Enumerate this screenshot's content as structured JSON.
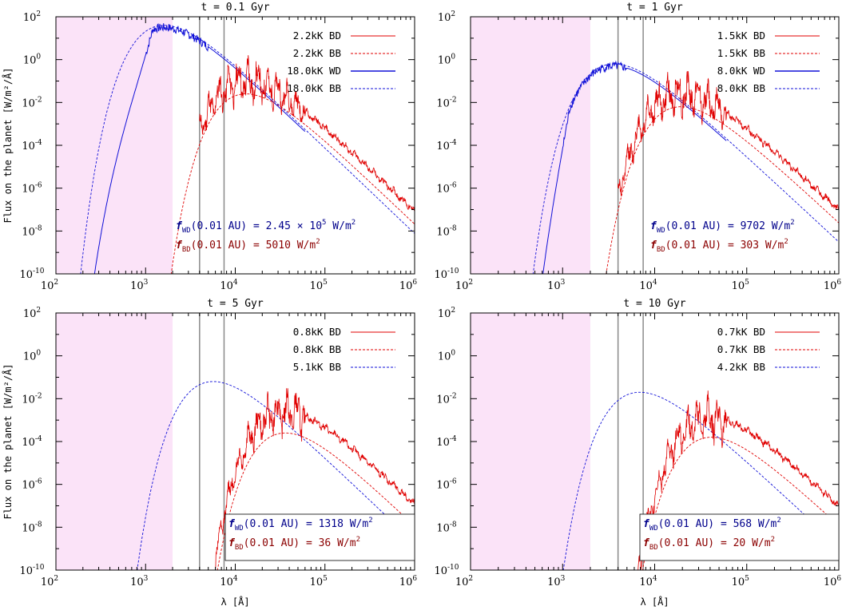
{
  "colors": {
    "bd": "#e00000",
    "wd": "#1010d8",
    "ann_wd": "#00008b",
    "ann_bd": "#8b0000",
    "band": "#fbe3f8",
    "line": "#8a8a8a"
  },
  "axes": {
    "ylabel": "Flux on the planet [W/m²/Å]",
    "xlabel": "λ [Å]",
    "x_ticks": [
      {
        "base": "10",
        "exp": "2"
      },
      {
        "base": "10",
        "exp": "3"
      },
      {
        "base": "10",
        "exp": "4"
      },
      {
        "base": "10",
        "exp": "5"
      },
      {
        "base": "10",
        "exp": "6"
      }
    ],
    "y_ticks": [
      {
        "base": "10",
        "exp": "2"
      },
      {
        "base": "10",
        "exp": "0"
      },
      {
        "base": "10",
        "exp": "-2"
      },
      {
        "base": "10",
        "exp": "-4"
      },
      {
        "base": "10",
        "exp": "-6"
      },
      {
        "base": "10",
        "exp": "-8"
      },
      {
        "base": "10",
        "exp": "-10"
      }
    ]
  },
  "chart_data": [
    {
      "type": "line",
      "title": "t = 0.1 Gyr",
      "xscale": "log",
      "yscale": "log",
      "xlim": [
        100,
        1000000
      ],
      "ylim": [
        1e-10,
        100
      ],
      "shaded_band": [
        100,
        2000
      ],
      "vertical_lines": [
        4000,
        7500
      ],
      "wd_temp_k": 18000,
      "bd_temp_k": 2200,
      "legend": [
        {
          "label": "2.2kK BD",
          "kind": "bd",
          "style": "solid"
        },
        {
          "label": "2.2kK BB",
          "kind": "bd",
          "style": "dashed"
        },
        {
          "label": "18.0kK WD",
          "kind": "wd",
          "style": "solid"
        },
        {
          "label": "18.0kK BB",
          "kind": "wd",
          "style": "dashed"
        }
      ],
      "annotation": {
        "wd": {
          "f": "f",
          "sub": "WD",
          "main": "(0.01 AU) = 2.45 × 10",
          "sup": "5",
          "unit": " W/m",
          "unit_sup": "2"
        },
        "bd": {
          "f": "f",
          "sub": "BD",
          "main": "(0.01 AU) = 5010 W/m",
          "sup": "2"
        },
        "boxed": false
      }
    },
    {
      "type": "line",
      "title": "t = 1 Gyr",
      "xscale": "log",
      "yscale": "log",
      "xlim": [
        100,
        1000000
      ],
      "ylim": [
        1e-10,
        100
      ],
      "shaded_band": [
        100,
        2000
      ],
      "vertical_lines": [
        4000,
        7500
      ],
      "wd_temp_k": 8000,
      "bd_temp_k": 1500,
      "legend": [
        {
          "label": "1.5kK BD",
          "kind": "bd",
          "style": "solid"
        },
        {
          "label": "1.5kK BB",
          "kind": "bd",
          "style": "dashed"
        },
        {
          "label": "8.0kK WD",
          "kind": "wd",
          "style": "solid"
        },
        {
          "label": "8.0kK BB",
          "kind": "wd",
          "style": "dashed"
        }
      ],
      "annotation": {
        "wd": {
          "f": "f",
          "sub": "WD",
          "main": "(0.01 AU) = 9702 W/m",
          "sup": "2"
        },
        "bd": {
          "f": "f",
          "sub": "BD",
          "main": "(0.01 AU) =  303 W/m",
          "sup": "2"
        },
        "boxed": false
      }
    },
    {
      "type": "line",
      "title": "t = 5 Gyr",
      "xscale": "log",
      "yscale": "log",
      "xlim": [
        100,
        1000000
      ],
      "ylim": [
        1e-10,
        100
      ],
      "shaded_band": [
        100,
        2000
      ],
      "vertical_lines": [
        4000,
        7500
      ],
      "wd_temp_k": 5100,
      "bd_temp_k": 800,
      "legend": [
        {
          "label": "0.8kK BD",
          "kind": "bd",
          "style": "solid"
        },
        {
          "label": "0.8kK BB",
          "kind": "bd",
          "style": "dashed"
        },
        {
          "label": "5.1kK BB",
          "kind": "wd",
          "style": "dashed"
        }
      ],
      "annotation": {
        "wd": {
          "f": "f",
          "sub": "WD",
          "main": "(0.01 AU) = 1318 W/m",
          "sup": "2"
        },
        "bd": {
          "f": "f",
          "sub": "BD",
          "main": "(0.01 AU) =   36 W/m",
          "sup": "2"
        },
        "boxed": true
      }
    },
    {
      "type": "line",
      "title": "t = 10 Gyr",
      "xscale": "log",
      "yscale": "log",
      "xlim": [
        100,
        1000000
      ],
      "ylim": [
        1e-10,
        100
      ],
      "shaded_band": [
        100,
        2000
      ],
      "vertical_lines": [
        4000,
        7500
      ],
      "wd_temp_k": 4200,
      "bd_temp_k": 700,
      "legend": [
        {
          "label": "0.7kK BD",
          "kind": "bd",
          "style": "solid"
        },
        {
          "label": "0.7kK BB",
          "kind": "bd",
          "style": "dashed"
        },
        {
          "label": "4.2kK BB",
          "kind": "wd",
          "style": "dashed"
        }
      ],
      "annotation": {
        "wd": {
          "f": "f",
          "sub": "WD",
          "main": "(0.01 AU) =  568 W/m",
          "sup": "2"
        },
        "bd": {
          "f": "f",
          "sub": "BD",
          "main": "(0.01 AU) =   20 W/m",
          "sup": "2"
        },
        "boxed": true
      }
    }
  ]
}
